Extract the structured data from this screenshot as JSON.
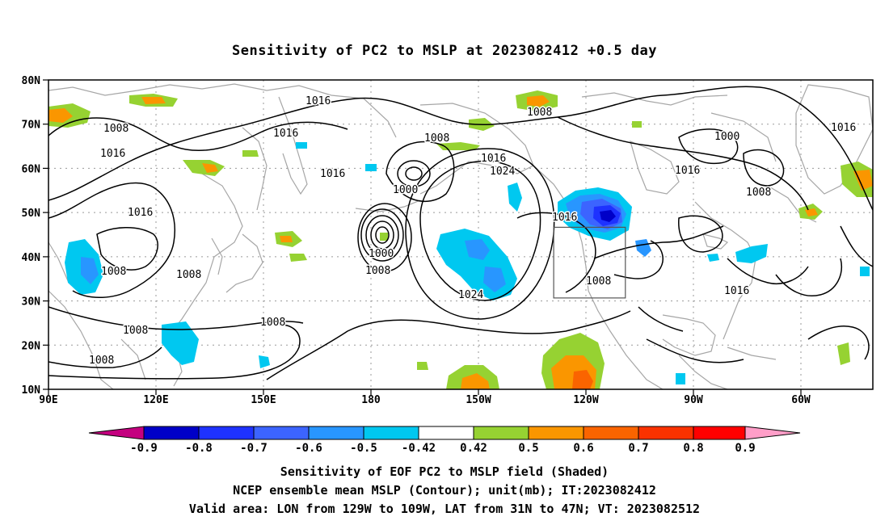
{
  "title": "Sensitivity of PC2 to MSLP at 2023082412 +0.5 day",
  "map": {
    "lat_ticks": [
      "80N",
      "70N",
      "60N",
      "50N",
      "40N",
      "30N",
      "20N",
      "10N"
    ],
    "lon_ticks": [
      "90E",
      "120E",
      "150E",
      "180",
      "150W",
      "120W",
      "90W",
      "60W"
    ],
    "contour_labels": [
      "1016",
      "1008",
      "1016",
      "1008",
      "1016",
      "1008",
      "1016",
      "1024",
      "1000",
      "1000",
      "1008",
      "1024",
      "1016",
      "1008",
      "1016",
      "1000",
      "1008",
      "1016",
      "1016",
      "1008",
      "1008",
      "1008",
      "1008",
      "1008",
      "1016",
      "1016"
    ],
    "valid_area": {
      "lon_from": "129W",
      "lon_to": "109W",
      "lat_from": "31N",
      "lat_to": "47N"
    },
    "colors": {
      "coast": "#a6a6a6",
      "grid": "#9a9a9a",
      "contour": "#000000",
      "box": "#555555"
    }
  },
  "colorbar": {
    "labels": [
      "-0.9",
      "-0.8",
      "-0.7",
      "-0.6",
      "-0.5",
      "-0.42",
      "0.42",
      "0.5",
      "0.6",
      "0.7",
      "0.8",
      "0.9"
    ],
    "colors": [
      "#c4007f",
      "#0000c8",
      "#1e32ff",
      "#3c64ff",
      "#2896ff",
      "#00c8f0",
      "#ffffff",
      "#96d232",
      "#fa9600",
      "#fa6400",
      "#fa3200",
      "#ff0000",
      "#ff9ec8"
    ]
  },
  "caption": {
    "line1": "Sensitivity of EOF PC2 to MSLP field (Shaded)",
    "line2": "NCEP ensemble mean MSLP (Contour); unit(mb); IT:2023082412",
    "line3": "Valid area: LON from 129W to 109W, LAT from 31N to 47N; VT: 2023082512"
  }
}
